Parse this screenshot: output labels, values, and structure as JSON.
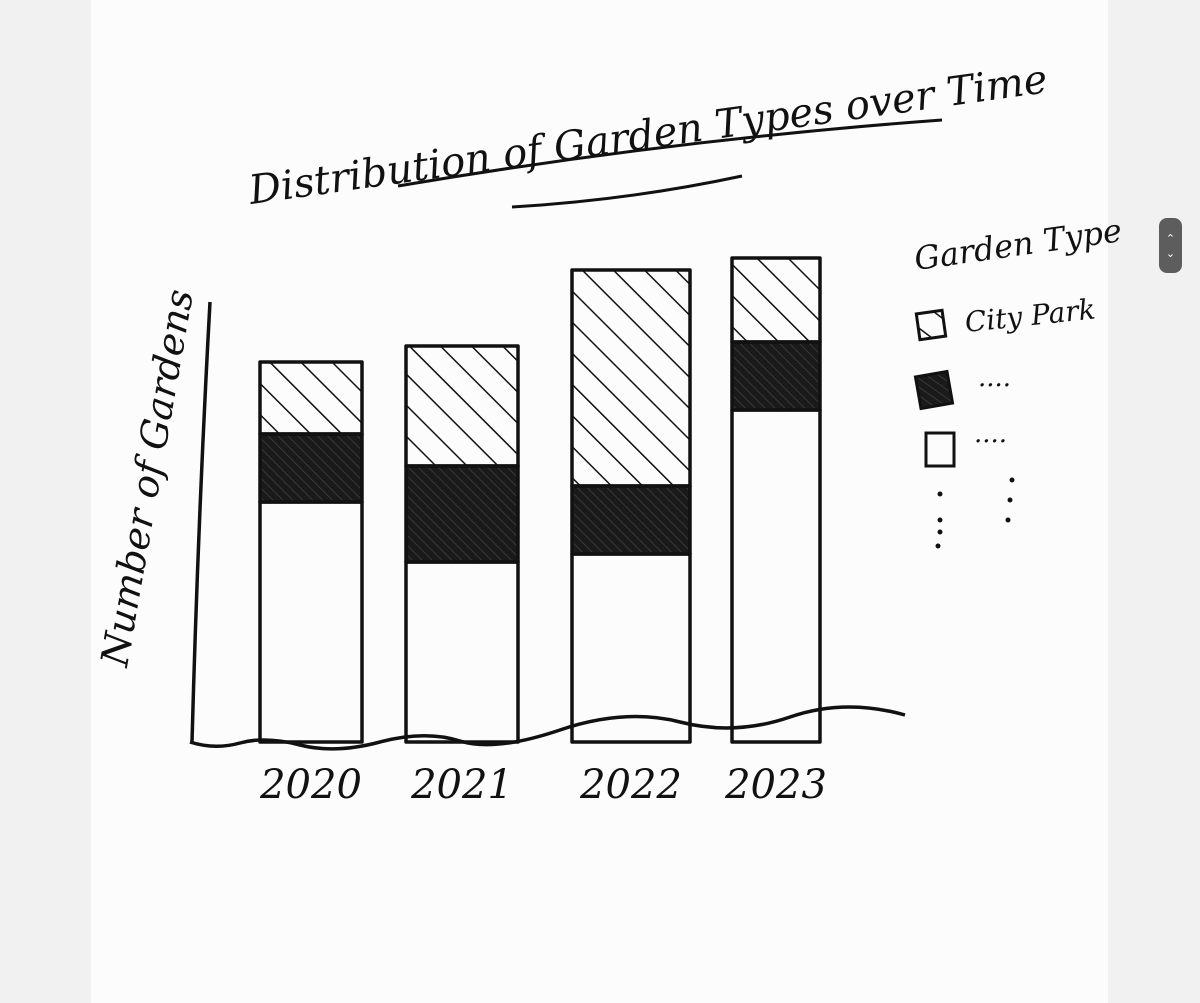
{
  "chart_data": {
    "type": "bar",
    "stacked": true,
    "title": "Distribution of Garden Types over Time",
    "xlabel": "",
    "ylabel": "Number of Gardens",
    "categories": [
      "2020",
      "2021",
      "2022",
      "2023"
    ],
    "series": [
      {
        "name": "",
        "fill": "white",
        "values": [
          60,
          45,
          47,
          83
        ]
      },
      {
        "name": "",
        "fill": "solid",
        "values": [
          17,
          24,
          17,
          17
        ]
      },
      {
        "name": "City Park",
        "fill": "hatched",
        "values": [
          18,
          30,
          54,
          21
        ]
      }
    ],
    "legend": {
      "title": "Garden Type",
      "placement": "right",
      "entries": [
        {
          "label": "City Park",
          "fill": "hatched"
        },
        {
          "label": "....",
          "fill": "solid"
        },
        {
          "label": "....",
          "fill": "white"
        }
      ]
    },
    "grid": false,
    "ylim": [
      0,
      130
    ],
    "style": "hand-drawn sketch",
    "colors": {
      "ink": "#111111",
      "paper": "#fcfcfc",
      "background": "#f1f1f1"
    }
  },
  "scroll_widget": {
    "up_icon": "⌃",
    "down_icon": "⌄"
  }
}
